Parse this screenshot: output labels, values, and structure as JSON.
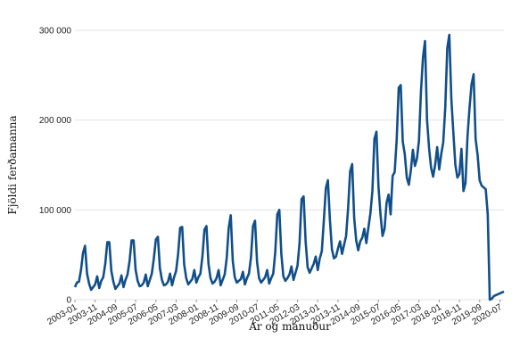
{
  "chart_data": {
    "type": "line",
    "xlabel": "Ár og mánuður",
    "ylabel": "Fjöldi ferðamanna",
    "ylim": [
      0,
      300000
    ],
    "grid": true,
    "y_ticks": [
      {
        "value": 0,
        "label": "0"
      },
      {
        "value": 100000,
        "label": "100 000"
      },
      {
        "value": 200000,
        "label": "200 000"
      },
      {
        "value": 300000,
        "label": "300 000"
      }
    ],
    "x_tick_labels": [
      "2003-01",
      "2003-11",
      "2004-09",
      "2005-07",
      "2006-05",
      "2007-03",
      "2008-01",
      "2008-11",
      "2009-09",
      "2010-07",
      "2011-05",
      "2012-03",
      "2013-01",
      "2013-11",
      "2014-09",
      "2015-07",
      "2016-05",
      "2017-03",
      "2018-01",
      "2018-11",
      "2019-09",
      "2020-07"
    ],
    "x_start": "2003-01",
    "x_end": "2020-09",
    "color": "#114f8a",
    "yearly_values": [
      [
        14000,
        19000,
        20000,
        33000,
        52000,
        60000,
        29000,
        18000,
        11000,
        14000,
        17000,
        26000
      ],
      [
        13000,
        21000,
        25000,
        40000,
        64000,
        64000,
        32000,
        20000,
        12000,
        15000,
        18000,
        27000
      ],
      [
        14000,
        22000,
        28000,
        43000,
        66000,
        66000,
        33000,
        21000,
        15000,
        16000,
        19000,
        28000
      ],
      [
        15000,
        22000,
        29000,
        46000,
        67000,
        70000,
        35000,
        22000,
        16000,
        17000,
        20000,
        29000
      ],
      [
        16000,
        25000,
        32000,
        51000,
        80000,
        81000,
        39000,
        24000,
        17000,
        20000,
        23000,
        33000
      ],
      [
        19000,
        25000,
        29000,
        48000,
        78000,
        82000,
        40000,
        24000,
        18000,
        20000,
        24000,
        33000
      ],
      [
        16000,
        22000,
        28000,
        46000,
        80000,
        94000,
        43000,
        25000,
        19000,
        21000,
        23000,
        31000
      ],
      [
        17000,
        24000,
        29000,
        47000,
        82000,
        88000,
        42000,
        24000,
        19000,
        22000,
        25000,
        33000
      ],
      [
        18000,
        24000,
        29000,
        53000,
        95000,
        100000,
        51000,
        26000,
        21000,
        24000,
        28000,
        37000
      ],
      [
        22000,
        30000,
        38000,
        63000,
        112000,
        115000,
        65000,
        36000,
        30000,
        35000,
        40000,
        48000
      ],
      [
        33000,
        46000,
        54000,
        88000,
        124000,
        133000,
        89000,
        56000,
        46000,
        48000,
        57000,
        65000
      ],
      [
        51000,
        61000,
        71000,
        102000,
        143000,
        151000,
        91000,
        66000,
        55000,
        65000,
        69000,
        79000
      ],
      [
        63000,
        80000,
        96000,
        121000,
        179000,
        187000,
        126000,
        95000,
        71000,
        79000,
        108000,
        117000
      ],
      [
        95000,
        138000,
        142000,
        178000,
        236000,
        239000,
        176000,
        162000,
        136000,
        128000,
        144000,
        167000
      ],
      [
        149000,
        157000,
        177000,
        232000,
        270000,
        288000,
        200000,
        169000,
        147000,
        137000,
        150000,
        170000
      ],
      [
        145000,
        162000,
        175000,
        214000,
        280000,
        295000,
        224000,
        186000,
        150000,
        136000,
        140000,
        168000
      ],
      [
        121000,
        130000,
        182000,
        214000,
        240000,
        251000,
        179000,
        161000,
        133000,
        127000,
        125000,
        123000
      ],
      [
        95000,
        0,
        1000,
        4000,
        5000,
        6000,
        7000,
        8000,
        9000
      ]
    ]
  }
}
